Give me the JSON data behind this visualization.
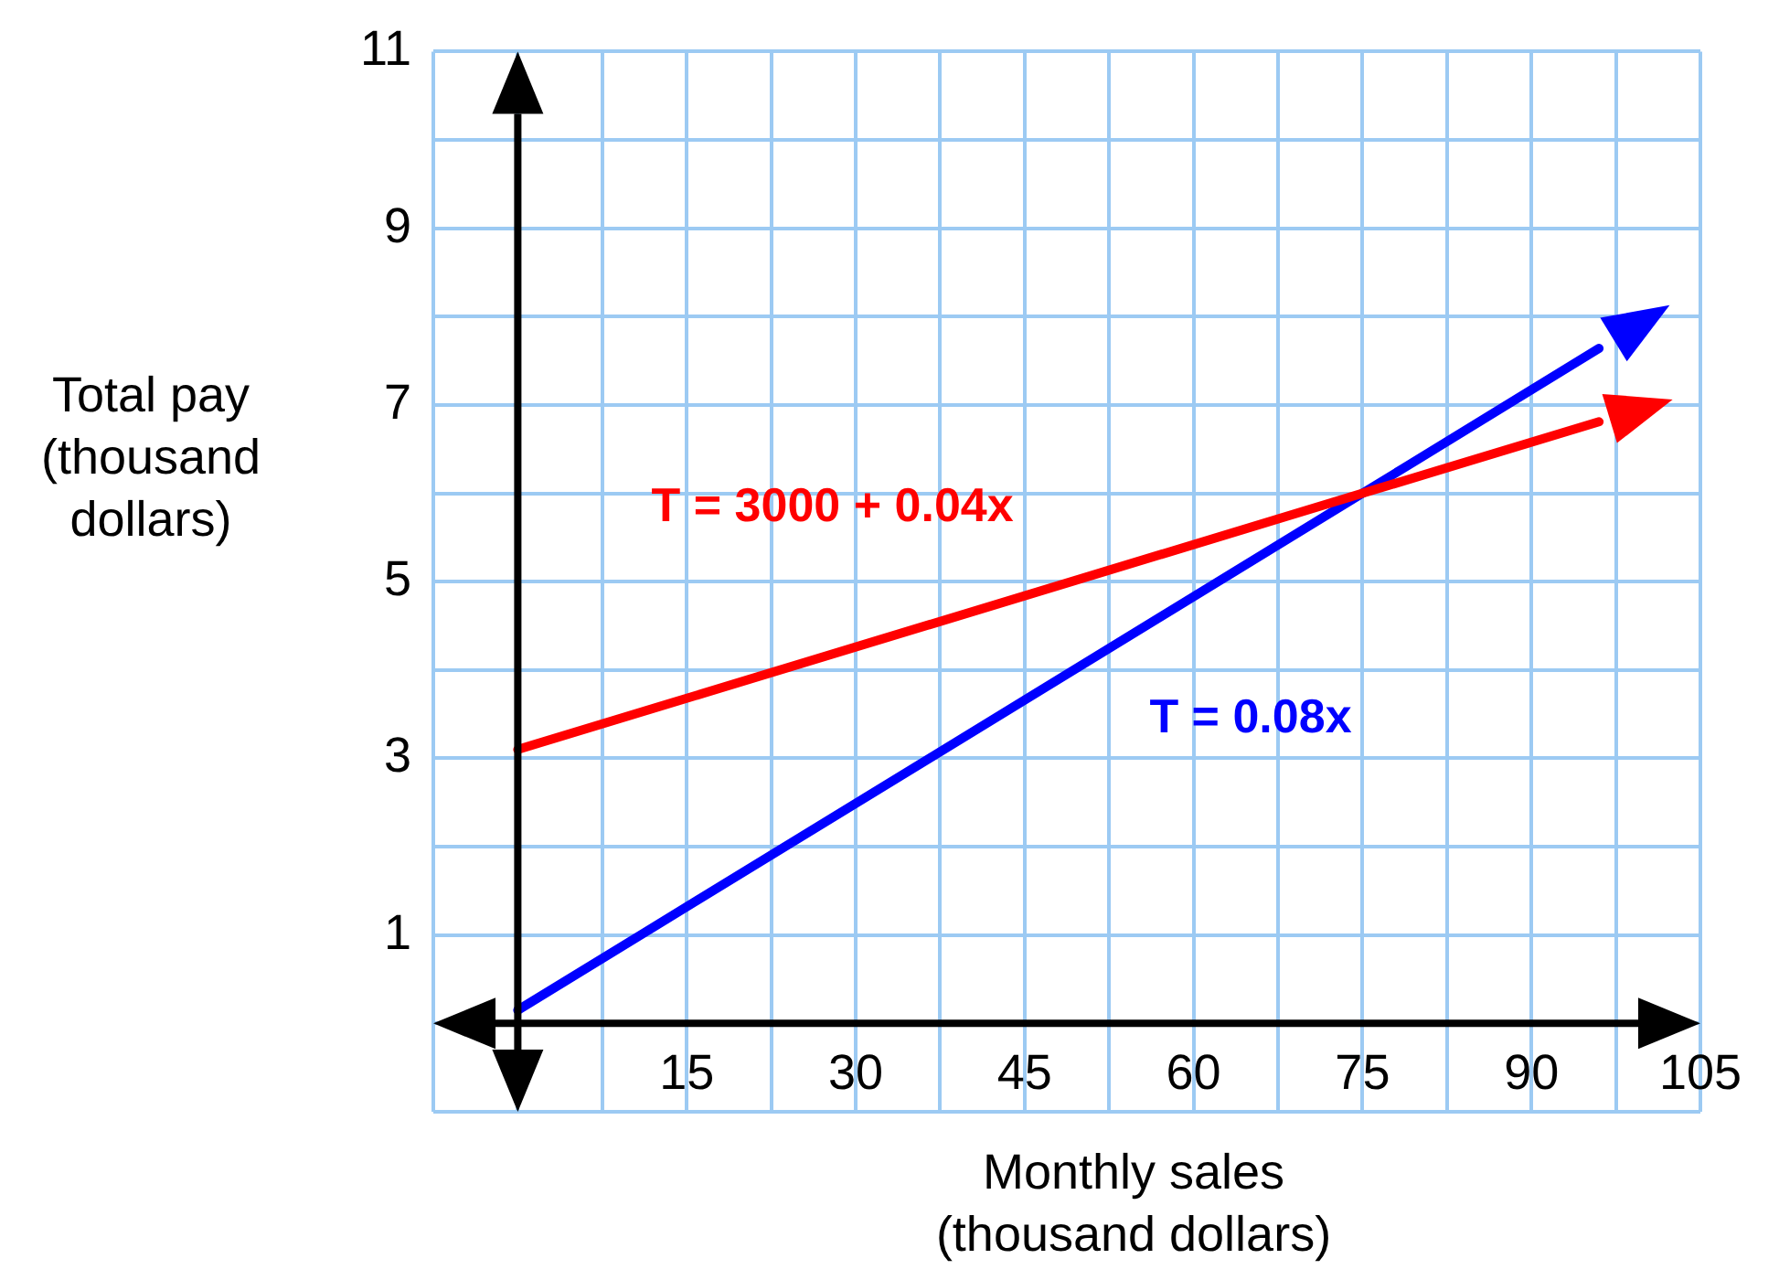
{
  "chart_data": {
    "type": "line",
    "xlabel": "Monthly sales\n(thousand dollars)",
    "ylabel": "Total pay\n(thousand\ndollars)",
    "xlim": [
      -7.5,
      105
    ],
    "ylim": [
      -1,
      11
    ],
    "xticks": [
      {
        "value": -7.5,
        "label": null
      },
      {
        "value": 0,
        "label": null
      },
      {
        "value": 7.5,
        "label": null
      },
      15,
      {
        "value": 22.5,
        "label": null
      },
      30,
      {
        "value": 37.5,
        "label": null
      },
      45,
      {
        "value": 52.5,
        "label": null
      },
      60,
      {
        "value": 67.5,
        "label": null
      },
      75,
      {
        "value": 82.5,
        "label": null
      },
      90,
      {
        "value": 97.5,
        "label": null
      },
      105
    ],
    "yticks": [
      {
        "value": -1,
        "label": null
      },
      {
        "value": 0,
        "label": null
      },
      1,
      {
        "value": 2,
        "label": null
      },
      3,
      {
        "value": 4,
        "label": null
      },
      5,
      {
        "value": 6,
        "label": null
      },
      7,
      {
        "value": 8,
        "label": null
      },
      9,
      {
        "value": 10,
        "label": null
      },
      11
    ],
    "grid": true,
    "marker": "none",
    "series": [
      {
        "color": "#ff0000",
        "x": [
          0,
          75,
          96
        ],
        "values": [
          3.1,
          6,
          6.81
        ]
      },
      {
        "color": "#0000ff",
        "x": [
          0,
          75,
          96
        ],
        "values": [
          0.15,
          6,
          7.64
        ]
      }
    ],
    "annotations": [
      "T = 3000 + 0.04x",
      "T = 0.08x"
    ]
  }
}
